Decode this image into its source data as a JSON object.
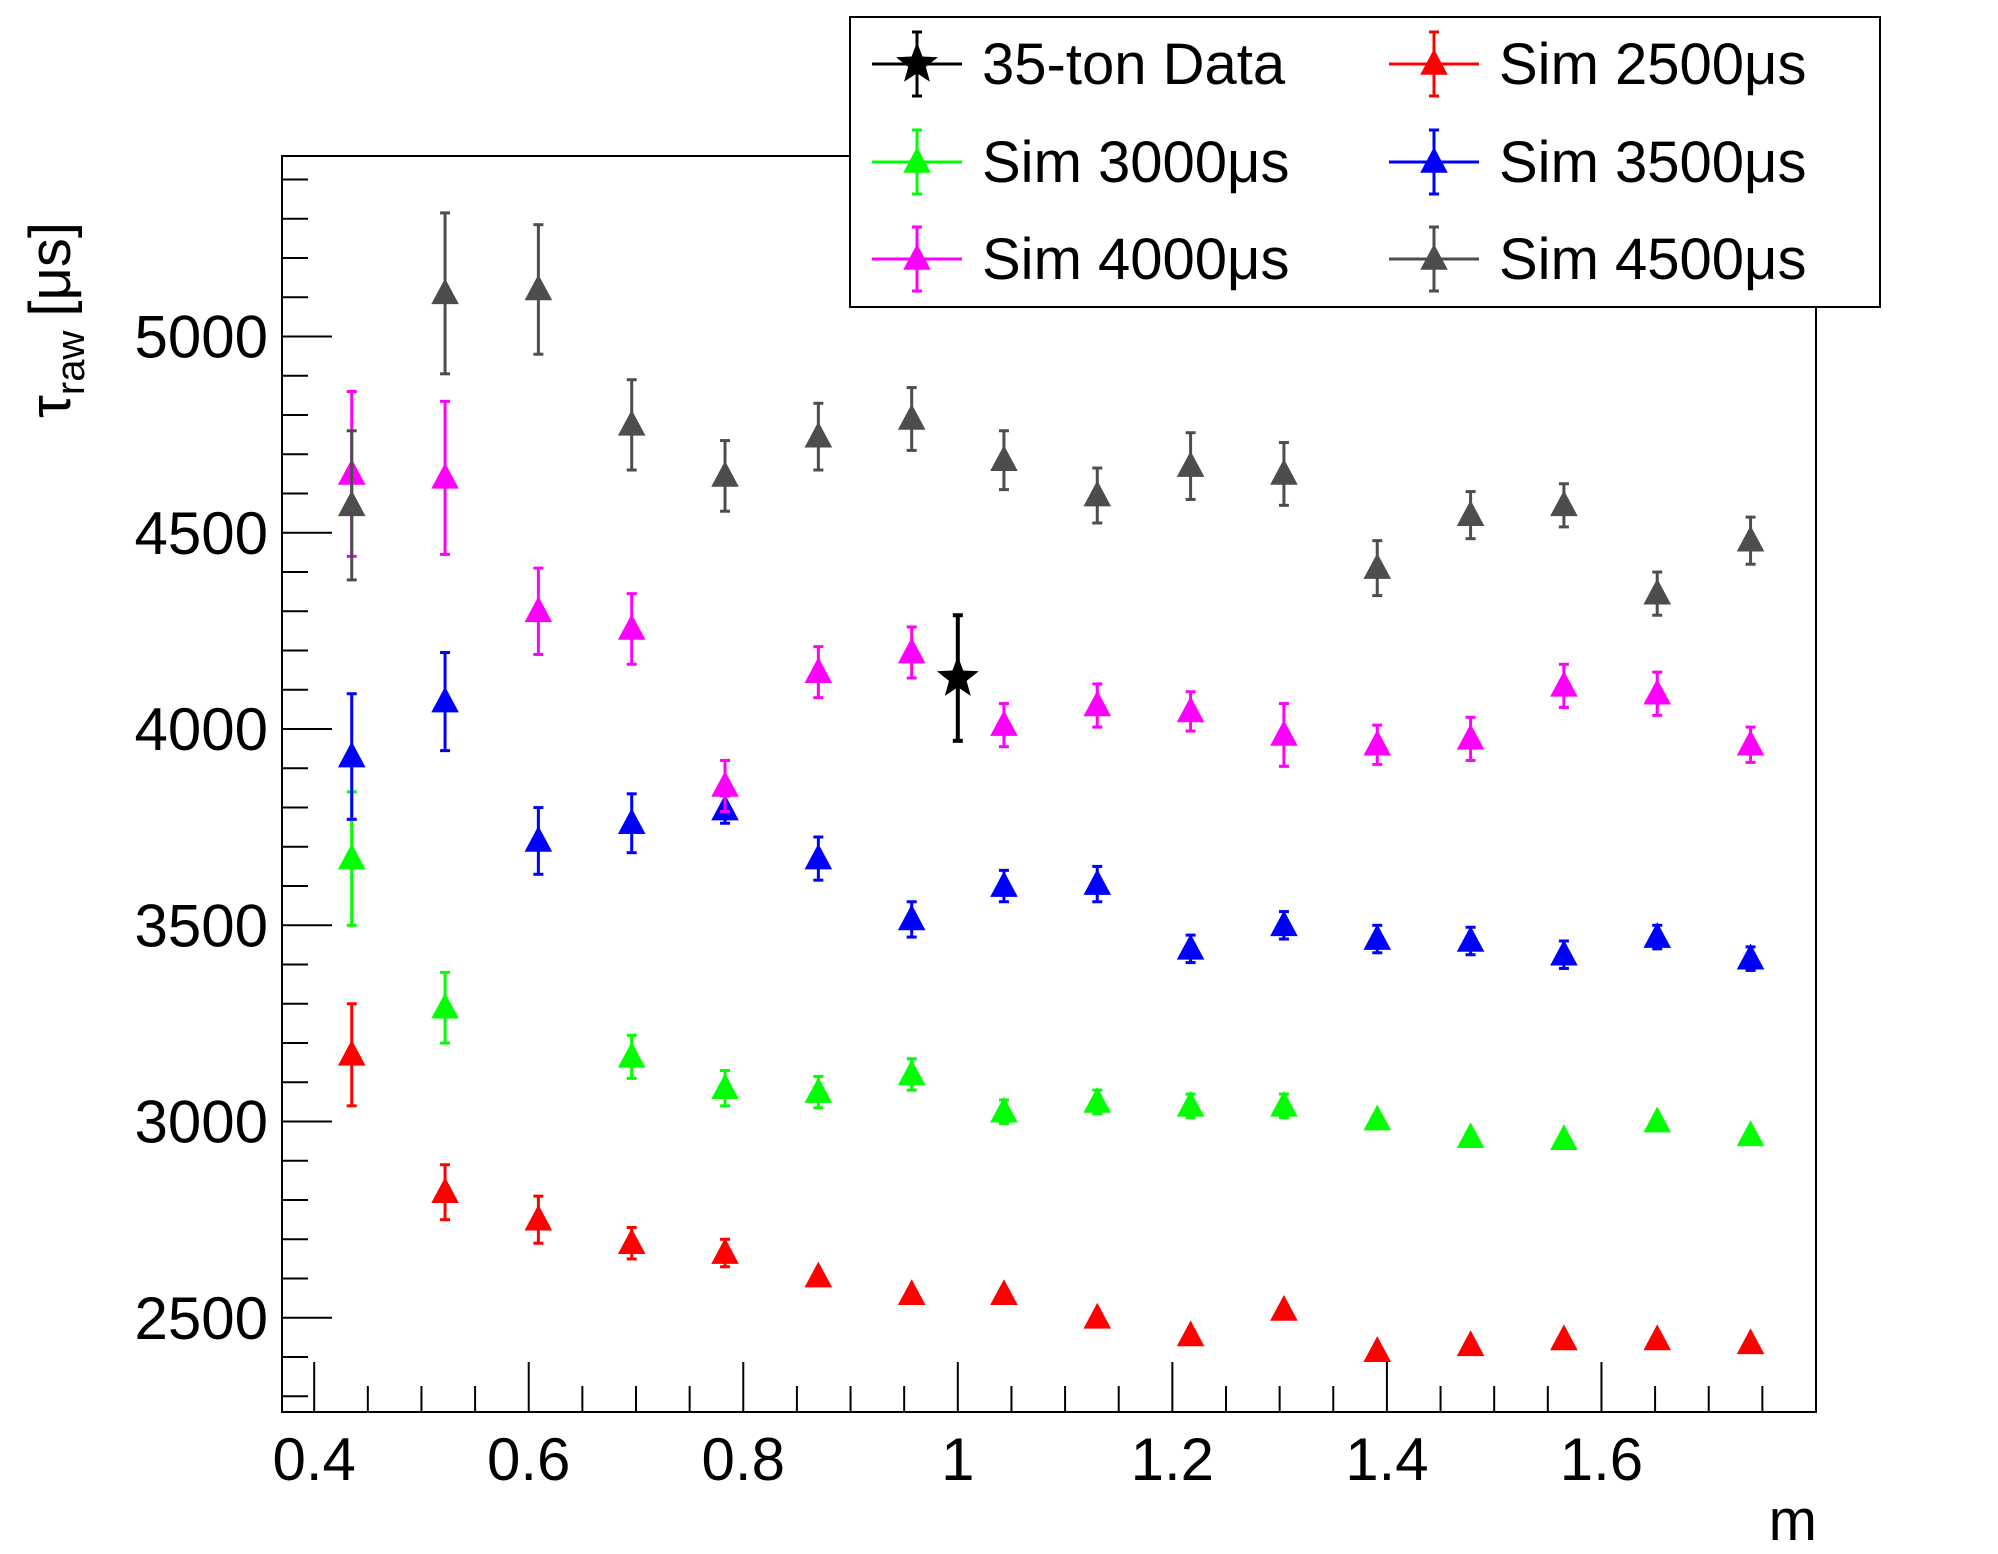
{
  "chart_data": {
    "type": "scatter",
    "xlabel": "m",
    "ylabel_main": "τ",
    "ylabel_sub": "raw",
    "ylabel_unit": "[μs]",
    "xlim": [
      0.37,
      1.8
    ],
    "ylim": [
      2260,
      5460
    ],
    "x_ticks": [
      "0.4",
      "0.6",
      "0.8",
      "1",
      "1.2",
      "1.4",
      "1.6"
    ],
    "y_ticks": [
      "2500",
      "3000",
      "3500",
      "4000",
      "4500",
      "5000"
    ],
    "grid": false,
    "legend_position": "top-right",
    "series": [
      {
        "name": "35-ton Data",
        "color": "#000000",
        "marker": "star",
        "points": [
          {
            "x": 1.0,
            "y": 4130,
            "err": 160
          }
        ]
      },
      {
        "name": "Sim 2500μs",
        "color": "#ff0000",
        "marker": "triangle",
        "points": [
          {
            "x": 0.435,
            "y": 3170,
            "err": 130
          },
          {
            "x": 0.522,
            "y": 2820,
            "err": 70
          },
          {
            "x": 0.609,
            "y": 2750,
            "err": 60
          },
          {
            "x": 0.696,
            "y": 2690,
            "err": 40
          },
          {
            "x": 0.783,
            "y": 2665,
            "err": 35
          },
          {
            "x": 0.87,
            "y": 2605,
            "err": 0
          },
          {
            "x": 0.957,
            "y": 2560,
            "err": 0
          },
          {
            "x": 1.043,
            "y": 2560,
            "err": 0
          },
          {
            "x": 1.13,
            "y": 2500,
            "err": 0
          },
          {
            "x": 1.217,
            "y": 2455,
            "err": 0
          },
          {
            "x": 1.304,
            "y": 2520,
            "err": 0
          },
          {
            "x": 1.391,
            "y": 2415,
            "err": 0
          },
          {
            "x": 1.478,
            "y": 2430,
            "err": 0
          },
          {
            "x": 1.565,
            "y": 2445,
            "err": 0
          },
          {
            "x": 1.652,
            "y": 2445,
            "err": 0
          },
          {
            "x": 1.739,
            "y": 2435,
            "err": 0
          }
        ]
      },
      {
        "name": "Sim 3000μs",
        "color": "#00ff00",
        "marker": "triangle",
        "points": [
          {
            "x": 0.435,
            "y": 3670,
            "err": 170
          },
          {
            "x": 0.522,
            "y": 3290,
            "err": 90
          },
          {
            "x": 0.696,
            "y": 3165,
            "err": 55
          },
          {
            "x": 0.783,
            "y": 3085,
            "err": 45
          },
          {
            "x": 0.87,
            "y": 3075,
            "err": 40
          },
          {
            "x": 0.957,
            "y": 3120,
            "err": 40
          },
          {
            "x": 1.043,
            "y": 3025,
            "err": 30
          },
          {
            "x": 1.13,
            "y": 3050,
            "err": 30
          },
          {
            "x": 1.217,
            "y": 3040,
            "err": 30
          },
          {
            "x": 1.304,
            "y": 3040,
            "err": 30
          },
          {
            "x": 1.391,
            "y": 3005,
            "err": 0
          },
          {
            "x": 1.478,
            "y": 2960,
            "err": 0
          },
          {
            "x": 1.565,
            "y": 2955,
            "err": 0
          },
          {
            "x": 1.652,
            "y": 3000,
            "err": 0
          },
          {
            "x": 1.739,
            "y": 2965,
            "err": 0
          }
        ]
      },
      {
        "name": "Sim 3500μs",
        "color": "#0000ff",
        "marker": "triangle",
        "points": [
          {
            "x": 0.435,
            "y": 3930,
            "err": 160
          },
          {
            "x": 0.522,
            "y": 4070,
            "err": 125
          },
          {
            "x": 0.609,
            "y": 3715,
            "err": 85
          },
          {
            "x": 0.696,
            "y": 3760,
            "err": 75
          },
          {
            "x": 0.783,
            "y": 3795,
            "err": 35
          },
          {
            "x": 0.87,
            "y": 3670,
            "err": 55
          },
          {
            "x": 0.957,
            "y": 3515,
            "err": 45
          },
          {
            "x": 1.043,
            "y": 3600,
            "err": 40
          },
          {
            "x": 1.13,
            "y": 3605,
            "err": 45
          },
          {
            "x": 1.217,
            "y": 3440,
            "err": 35
          },
          {
            "x": 1.304,
            "y": 3500,
            "err": 35
          },
          {
            "x": 1.391,
            "y": 3465,
            "err": 35
          },
          {
            "x": 1.478,
            "y": 3460,
            "err": 35
          },
          {
            "x": 1.565,
            "y": 3425,
            "err": 35
          },
          {
            "x": 1.652,
            "y": 3470,
            "err": 30
          },
          {
            "x": 1.739,
            "y": 3415,
            "err": 30
          }
        ]
      },
      {
        "name": "Sim 4000μs",
        "color": "#ff00ff",
        "marker": "triangle",
        "points": [
          {
            "x": 0.435,
            "y": 4650,
            "err": 210
          },
          {
            "x": 0.522,
            "y": 4640,
            "err": 195
          },
          {
            "x": 0.609,
            "y": 4300,
            "err": 110
          },
          {
            "x": 0.696,
            "y": 4255,
            "err": 90
          },
          {
            "x": 0.783,
            "y": 3855,
            "err": 65
          },
          {
            "x": 0.87,
            "y": 4145,
            "err": 65
          },
          {
            "x": 0.957,
            "y": 4195,
            "err": 65
          },
          {
            "x": 1.043,
            "y": 4010,
            "err": 55
          },
          {
            "x": 1.13,
            "y": 4060,
            "err": 55
          },
          {
            "x": 1.217,
            "y": 4045,
            "err": 50
          },
          {
            "x": 1.304,
            "y": 3985,
            "err": 80
          },
          {
            "x": 1.391,
            "y": 3960,
            "err": 50
          },
          {
            "x": 1.478,
            "y": 3975,
            "err": 55
          },
          {
            "x": 1.565,
            "y": 4110,
            "err": 55
          },
          {
            "x": 1.652,
            "y": 4090,
            "err": 55
          },
          {
            "x": 1.739,
            "y": 3960,
            "err": 45
          }
        ]
      },
      {
        "name": "Sim 4500μs",
        "color": "#4d4d4d",
        "marker": "triangle",
        "points": [
          {
            "x": 0.435,
            "y": 4570,
            "err": 190
          },
          {
            "x": 0.522,
            "y": 5110,
            "err": 205
          },
          {
            "x": 0.609,
            "y": 5120,
            "err": 165
          },
          {
            "x": 0.696,
            "y": 4775,
            "err": 115
          },
          {
            "x": 0.783,
            "y": 4645,
            "err": 90
          },
          {
            "x": 0.87,
            "y": 4745,
            "err": 85
          },
          {
            "x": 0.957,
            "y": 4790,
            "err": 80
          },
          {
            "x": 1.043,
            "y": 4685,
            "err": 75
          },
          {
            "x": 1.13,
            "y": 4595,
            "err": 70
          },
          {
            "x": 1.217,
            "y": 4670,
            "err": 85
          },
          {
            "x": 1.304,
            "y": 4650,
            "err": 80
          },
          {
            "x": 1.391,
            "y": 4410,
            "err": 70
          },
          {
            "x": 1.478,
            "y": 4545,
            "err": 60
          },
          {
            "x": 1.565,
            "y": 4570,
            "err": 55
          },
          {
            "x": 1.652,
            "y": 4345,
            "err": 55
          },
          {
            "x": 1.739,
            "y": 4480,
            "err": 60
          }
        ]
      }
    ]
  }
}
